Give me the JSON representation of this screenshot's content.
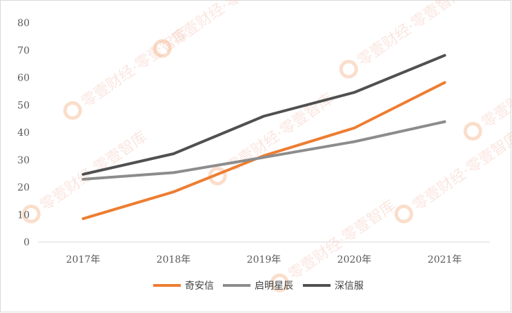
{
  "chart_data": {
    "type": "line",
    "categories": [
      "2017年",
      "2018年",
      "2019年",
      "2020年",
      "2021年"
    ],
    "series": [
      {
        "name": "奇安信",
        "values": [
          8.5,
          18.3,
          31.5,
          41.6,
          58.2
        ],
        "color": "#ed7d31"
      },
      {
        "name": "启明星辰",
        "values": [
          22.9,
          25.3,
          30.9,
          36.6,
          43.9
        ],
        "color": "#8c8c8c"
      },
      {
        "name": "深信服",
        "values": [
          24.7,
          32.2,
          45.9,
          54.6,
          68.1
        ],
        "color": "#505050"
      }
    ],
    "ylim": [
      0,
      80
    ],
    "yticks": [
      0,
      10,
      20,
      30,
      40,
      50,
      60,
      70,
      80
    ],
    "grid": false,
    "legend_position": "bottom"
  },
  "watermark": {
    "text": "零壹财经·零壹智库",
    "logo_color": "#ed7d31"
  }
}
